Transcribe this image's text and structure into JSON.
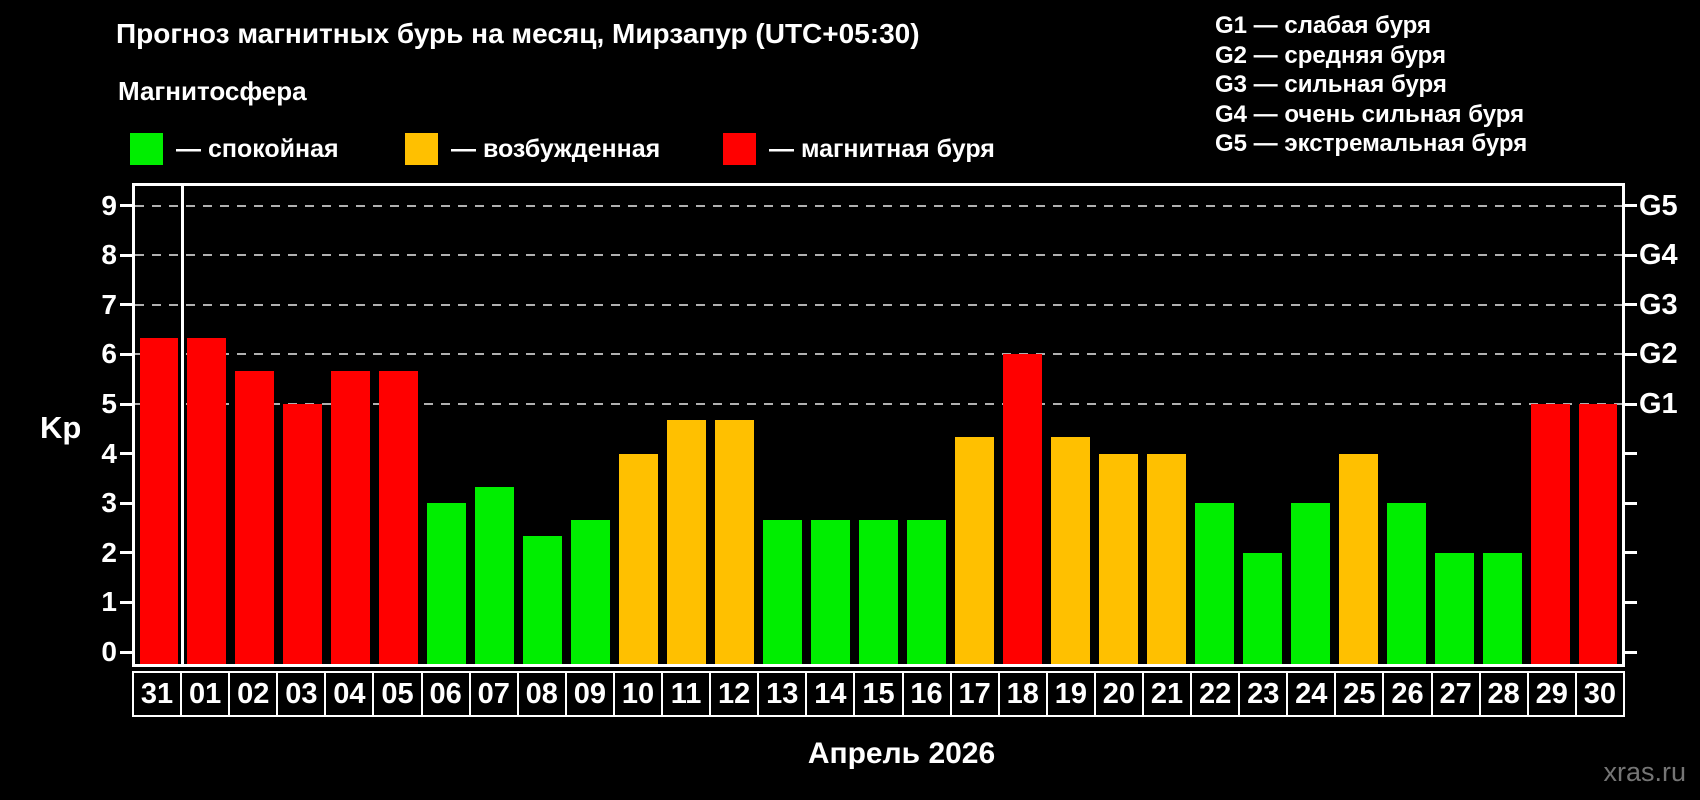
{
  "watermark": "xras.ru",
  "magnetosphere_legend": {
    "heading": "Магнитосфера",
    "items": [
      {
        "name": "quiet",
        "label": "— спокойная",
        "color": "#00ee00"
      },
      {
        "name": "active",
        "label": "— возбужденная",
        "color": "#ffc000"
      },
      {
        "name": "storm",
        "label": "— магнитная буря",
        "color": "#ff0000"
      }
    ]
  },
  "g_scale_legend": {
    "lines": [
      "G1 — слабая буря",
      "G2 — средняя буря",
      "G3 — сильная буря",
      "G4 — очень сильная буря",
      "G5 — экстремальная буря"
    ]
  },
  "chart_data": {
    "type": "bar",
    "title": "Прогноз магнитных бурь на месяц, Мирзапур (UTC+05:30)",
    "xlabel": "Апрель 2026",
    "ylabel": "Kp",
    "ylim": [
      0,
      9.4
    ],
    "yticks": [
      0,
      1,
      2,
      3,
      4,
      5,
      6,
      7,
      8,
      9
    ],
    "gridlines": [
      5,
      6,
      7,
      8,
      9
    ],
    "grid_style": "dashed horizontal, only at storm levels G1–G5",
    "right_axis": [
      {
        "value": 5,
        "label": "G1"
      },
      {
        "value": 6,
        "label": "G2"
      },
      {
        "value": 7,
        "label": "G3"
      },
      {
        "value": 8,
        "label": "G4"
      },
      {
        "value": 9,
        "label": "G5"
      }
    ],
    "categories": [
      "31",
      "01",
      "02",
      "03",
      "04",
      "05",
      "06",
      "07",
      "08",
      "09",
      "10",
      "11",
      "12",
      "13",
      "14",
      "15",
      "16",
      "17",
      "18",
      "19",
      "20",
      "21",
      "22",
      "23",
      "24",
      "25",
      "26",
      "27",
      "28",
      "29",
      "30"
    ],
    "values": [
      6.33,
      6.33,
      5.67,
      5,
      5.67,
      5.67,
      3,
      3.33,
      2.33,
      2.67,
      4,
      4.67,
      4.67,
      2.67,
      2.67,
      2.67,
      2.67,
      4.33,
      6,
      4.33,
      4,
      4,
      3,
      2,
      3,
      4,
      3,
      2,
      2,
      5,
      5
    ],
    "levels": [
      "storm",
      "storm",
      "storm",
      "storm",
      "storm",
      "storm",
      "quiet",
      "quiet",
      "quiet",
      "quiet",
      "active",
      "active",
      "active",
      "quiet",
      "quiet",
      "quiet",
      "quiet",
      "active",
      "storm",
      "active",
      "active",
      "active",
      "quiet",
      "quiet",
      "quiet",
      "active",
      "quiet",
      "quiet",
      "quiet",
      "storm",
      "storm"
    ],
    "palette": {
      "quiet": "#00ee00",
      "active": "#ffc000",
      "storm": "#ff0000"
    },
    "separator_after_index": 0,
    "legend_position": "top-left"
  }
}
